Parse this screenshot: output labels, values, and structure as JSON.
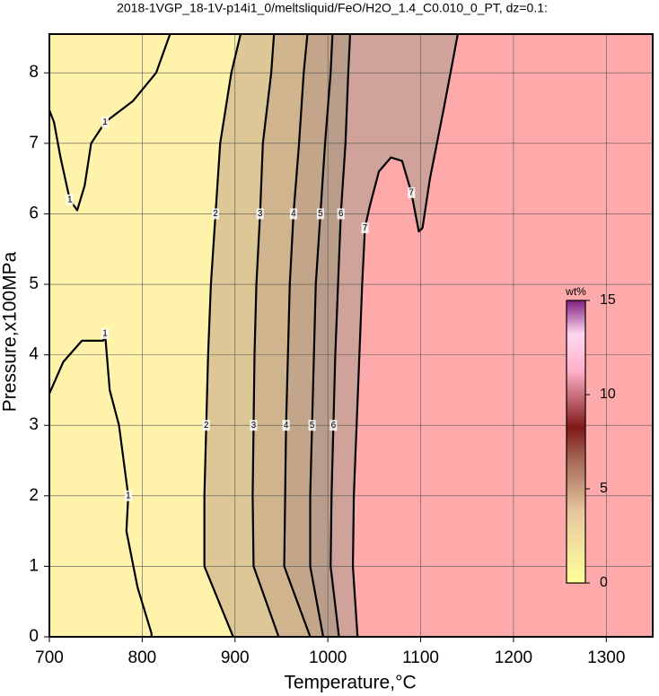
{
  "chart_data": {
    "type": "contour",
    "title": "2018-1VGP_18-1V-p14i1_0/meltsliquid/FeO/H2O_1.4_C0.010_0_PT, dz=0.1:",
    "xlabel": "Temperature,°C",
    "ylabel": "Pressure,x100MPa",
    "xlim": [
      700,
      1350
    ],
    "xticks": [
      700,
      800,
      900,
      1000,
      1100,
      1200,
      1300
    ],
    "ylim": [
      0,
      8.55
    ],
    "yticks": [
      0,
      1,
      2,
      3,
      4,
      5,
      6,
      7,
      8
    ],
    "grid": true,
    "background_color": "#ffaaaa",
    "base_color": "#fff3ac",
    "colorbar": {
      "label": "wt%",
      "lim": [
        0,
        15
      ],
      "ticks": [
        0,
        5,
        10,
        15
      ]
    },
    "contours": [
      {
        "level": 7,
        "fill": "#cfa29a",
        "temperature": [
          1032,
          1027,
          1028,
          1031,
          1034,
          1037,
          1040,
          1045,
          1055,
          1068,
          1080,
          1090,
          1098,
          1102,
          1110,
          1125,
          1135,
          1140
        ],
        "pressure": [
          0,
          1,
          2,
          3,
          4,
          5,
          5.8,
          6.1,
          6.6,
          6.8,
          6.75,
          6.3,
          5.75,
          5.8,
          6.5,
          7.5,
          8.2,
          8.55
        ]
      },
      {
        "level": 6,
        "fill": "#b99d8a",
        "temperature": [
          1012,
          1003,
          1004,
          1006,
          1008,
          1011,
          1014,
          1019,
          1022,
          1024
        ],
        "pressure": [
          0,
          1,
          2,
          3,
          4,
          5,
          6,
          7,
          8,
          8.55
        ]
      },
      {
        "level": 5,
        "fill": "#c3a689",
        "temperature": [
          995,
          981,
          981,
          983,
          985,
          987,
          992,
          997,
          1003,
          1005
        ],
        "pressure": [
          0,
          1,
          2,
          3,
          4,
          5,
          6,
          7,
          8,
          8.55
        ]
      },
      {
        "level": 4,
        "fill": "#cfb48e",
        "temperature": [
          981,
          953,
          954,
          955,
          957,
          959,
          963,
          969,
          974,
          978
        ],
        "pressure": [
          0,
          1,
          2,
          3,
          4,
          5,
          6,
          7,
          8,
          8.55
        ]
      },
      {
        "level": 3,
        "fill": "#ddc797",
        "temperature": [
          947,
          920,
          919,
          920,
          921,
          923,
          927,
          930,
          939,
          942
        ],
        "pressure": [
          0,
          1,
          2,
          3,
          4,
          5,
          6,
          7,
          8,
          8.55
        ]
      },
      {
        "level": 2,
        "fill": "#fff3ac",
        "temperature": [
          898,
          867,
          867,
          869,
          871,
          874,
          879,
          884,
          896,
          906
        ],
        "pressure": [
          0,
          1,
          2,
          3,
          4,
          5,
          6,
          7,
          8,
          8.55
        ]
      },
      {
        "level": 1,
        "temperature": [
          830,
          815,
          790,
          760,
          745,
          738,
          730,
          722,
          712,
          705,
          700
        ],
        "pressure": [
          8.55,
          8.0,
          7.6,
          7.3,
          7.0,
          6.4,
          6.05,
          6.2,
          6.8,
          7.3,
          7.47
        ]
      },
      {
        "level": 1,
        "temperature": [
          700,
          715,
          735,
          758,
          760,
          765,
          775,
          780,
          785,
          783,
          795,
          810,
          810
        ],
        "pressure": [
          3.45,
          3.9,
          4.2,
          4.2,
          4.3,
          3.5,
          3.0,
          2.5,
          2.0,
          1.5,
          0.7,
          0.05,
          0
        ]
      }
    ]
  }
}
